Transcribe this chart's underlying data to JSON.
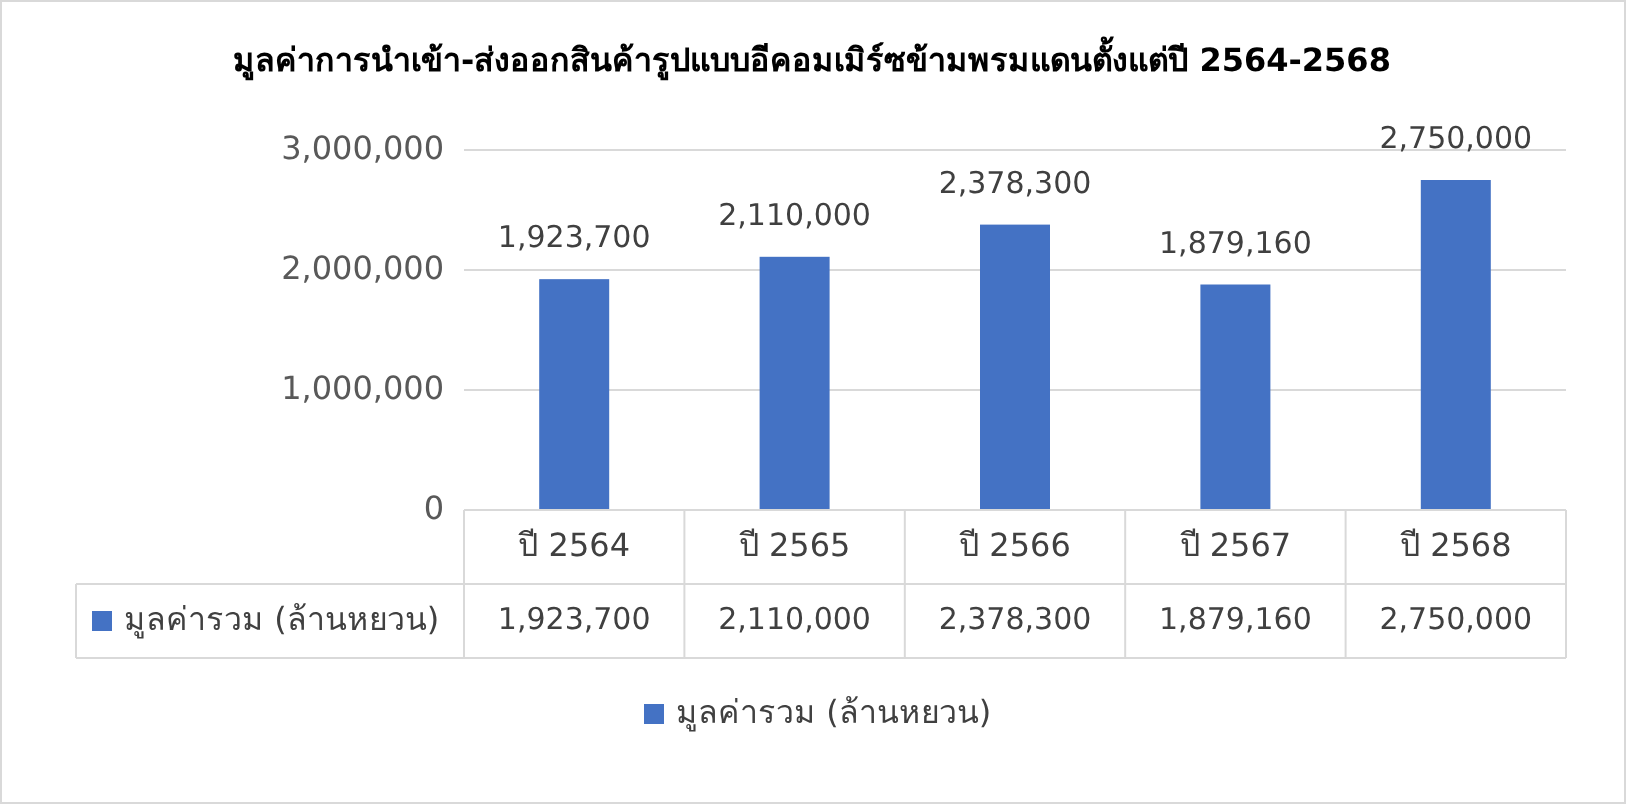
{
  "chart_data": {
    "type": "bar",
    "title": "มูลค่าการนำเข้า-ส่งออกสินค้ารูปแบบอีคอมเมิร์ซข้ามพรมแดนตั้งแต่ปี 2564-2568",
    "categories": [
      "ปี 2564",
      "ปี 2565",
      "ปี 2566",
      "ปี 2567",
      "ปี 2568"
    ],
    "series": [
      {
        "name": "มูลค่ารวม (ล้านหยวน)",
        "color": "#4472c4",
        "values": [
          1923700,
          2110000,
          2378300,
          1879160,
          2750000
        ],
        "value_labels": [
          "1,923,700",
          "2,110,000",
          "2,378,300",
          "1,879,160",
          "2,750,000"
        ]
      }
    ],
    "ylim": [
      0,
      3000000
    ],
    "yticks": [
      {
        "value": 0,
        "label": "0"
      },
      {
        "value": 1000000,
        "label": "1,000,000"
      },
      {
        "value": 2000000,
        "label": "2,000,000"
      },
      {
        "value": 3000000,
        "label": "3,000,000"
      }
    ],
    "grid": "y",
    "legend": "bottom"
  }
}
